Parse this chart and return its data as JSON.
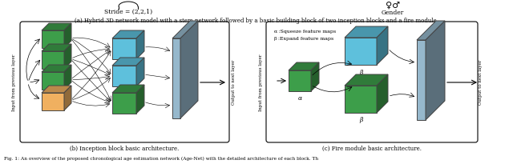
{
  "background_color": "#ffffff",
  "caption_a": "(a) Hybrid 3D network model with a stem network followed by a basic building block of two inception blocks and a fire module.",
  "caption_b": "(b) Inception block basic architecture.",
  "caption_c": "(c) Fire module basic architecture.",
  "footer": "Fig. 1: An overview of the proposed chronological age estimation network (Age-Net) with the detailed architecture of each block. Th",
  "stride_text": "Stride = (2,2,1)",
  "gender_text": "Gender",
  "alpha_text": "α :Squeeze feature maps",
  "beta_text": "β :Expand feature maps",
  "alpha_label": "α",
  "beta_label": "β",
  "left_label_b": "Input from previous layer",
  "right_label_b": "Output to next layer",
  "left_label_c": "Input from previous layer",
  "right_label_c": "Output to next layer",
  "green_color": "#3d9e4a",
  "blue_color": "#5ec0dc",
  "orange_color": "#f0b060",
  "gray_color": "#96b8cc",
  "box_border": "#444444"
}
